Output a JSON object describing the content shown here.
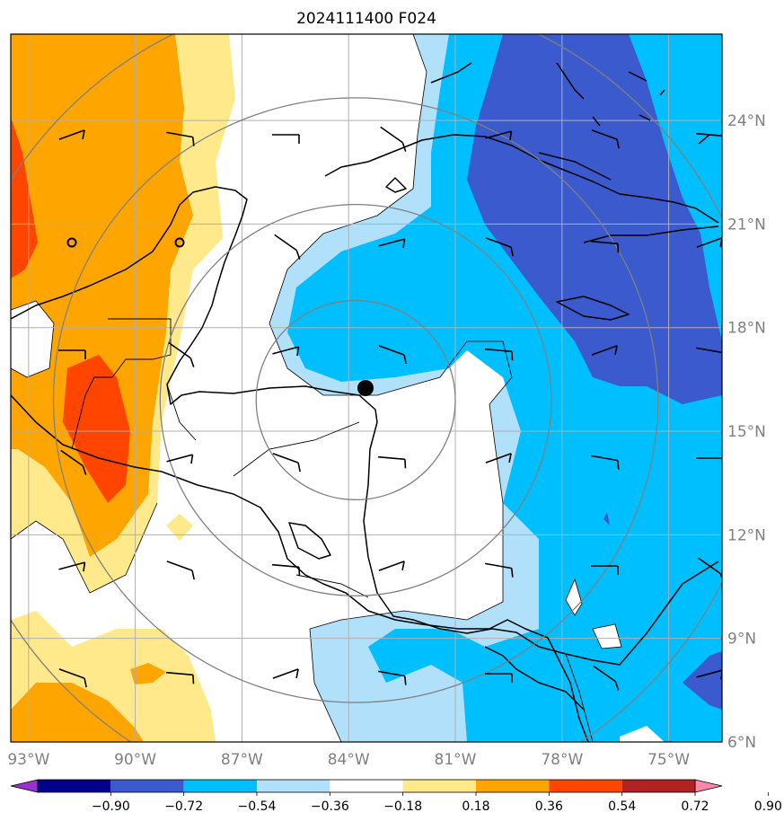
{
  "title": "2024111400 F024",
  "map": {
    "lon_range": [
      -93.5,
      -73.5
    ],
    "lat_range": [
      6,
      26.5
    ],
    "x_ticks": [
      {
        "label": "93°W",
        "lon": -93
      },
      {
        "label": "90°W",
        "lon": -90
      },
      {
        "label": "87°W",
        "lon": -87
      },
      {
        "label": "84°W",
        "lon": -84
      },
      {
        "label": "81°W",
        "lon": -81
      },
      {
        "label": "78°W",
        "lon": -78
      },
      {
        "label": "75°W",
        "lon": -75
      }
    ],
    "y_ticks": [
      {
        "label": "24°N",
        "lat": 24
      },
      {
        "label": "21°N",
        "lat": 21
      },
      {
        "label": "18°N",
        "lat": 18
      },
      {
        "label": "15°N",
        "lat": 15
      },
      {
        "label": "12°N",
        "lat": 12
      },
      {
        "label": "9°N",
        "lat": 9
      },
      {
        "label": "6°N",
        "lat": 6
      }
    ],
    "grid": true,
    "storm_center": {
      "lon": -83.8,
      "lat": 15.9
    },
    "range_rings_deg": [
      2.8,
      5.5,
      8.5,
      11.5
    ]
  },
  "colorbar": {
    "colors": [
      "#9932cc",
      "#00008b",
      "#3a5acd",
      "#00bfff",
      "#b0e0fa",
      "#ffffff",
      "#ffe98a",
      "#ffa500",
      "#ff4500",
      "#b22222",
      "#ff88aa"
    ],
    "labels": [
      "−0.90",
      "−0.72",
      "−0.54",
      "−0.36",
      "−0.18",
      "0.18",
      "0.36",
      "0.54",
      "0.72",
      "0.90"
    ],
    "extend": "both"
  }
}
